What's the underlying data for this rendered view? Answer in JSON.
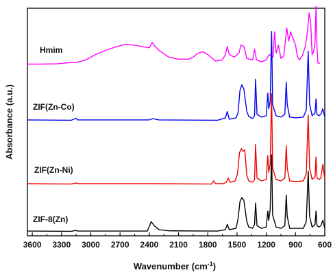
{
  "chart_data": {
    "type": "line",
    "title": "",
    "xlabel": "Wavenumber (cm",
    "xlabel_sup": "-1",
    "xlabel_close": ")",
    "ylabel": "Absorbance (a.u.)",
    "xlim": [
      3650,
      600
    ],
    "x_reversed": true,
    "x_ticks": [
      3600,
      3300,
      3000,
      2700,
      2400,
      2100,
      1800,
      1500,
      1200,
      900,
      600
    ],
    "y_ticks_shown": false,
    "grid": false,
    "legend": "inline labels left of each trace",
    "series": [
      {
        "name": "Hmim",
        "color": "#ff00ff",
        "points": [
          [
            3650,
            0.18
          ],
          [
            3500,
            0.18
          ],
          [
            3350,
            0.2
          ],
          [
            3200,
            0.3
          ],
          [
            3150,
            0.3
          ],
          [
            3050,
            0.5
          ],
          [
            2950,
            0.9
          ],
          [
            2850,
            1.2
          ],
          [
            2750,
            1.45
          ],
          [
            2650,
            1.65
          ],
          [
            2550,
            1.6
          ],
          [
            2450,
            1.45
          ],
          [
            2400,
            1.4
          ],
          [
            2370,
            1.8
          ],
          [
            2340,
            1.5
          ],
          [
            2300,
            1.2
          ],
          [
            2200,
            0.7
          ],
          [
            2100,
            0.55
          ],
          [
            2000,
            0.55
          ],
          [
            1950,
            0.7
          ],
          [
            1900,
            1.0
          ],
          [
            1850,
            1.1
          ],
          [
            1800,
            0.9
          ],
          [
            1720,
            0.4
          ],
          [
            1650,
            0.5
          ],
          [
            1620,
            0.9
          ],
          [
            1600,
            1.5
          ],
          [
            1580,
            0.9
          ],
          [
            1530,
            0.7
          ],
          [
            1480,
            1.0
          ],
          [
            1460,
            1.6
          ],
          [
            1430,
            1.5
          ],
          [
            1400,
            0.6
          ],
          [
            1340,
            0.5
          ],
          [
            1320,
            1.3
          ],
          [
            1300,
            0.5
          ],
          [
            1250,
            0.35
          ],
          [
            1200,
            0.5
          ],
          [
            1170,
            0.9
          ],
          [
            1150,
            0.8
          ],
          [
            1130,
            0.7
          ],
          [
            1115,
            2.6
          ],
          [
            1100,
            1.0
          ],
          [
            1075,
            1.6
          ],
          [
            1050,
            0.6
          ],
          [
            1020,
            0.8
          ],
          [
            1000,
            2.2
          ],
          [
            990,
            2.9
          ],
          [
            970,
            1.9
          ],
          [
            950,
            2.6
          ],
          [
            930,
            2.2
          ],
          [
            900,
            1.6
          ],
          [
            880,
            0.7
          ],
          [
            860,
            0.5
          ],
          [
            830,
            0.8
          ],
          [
            800,
            1.5
          ],
          [
            780,
            2.5
          ],
          [
            760,
            4.0
          ],
          [
            745,
            3.3
          ],
          [
            730,
            0.9
          ],
          [
            715,
            1.1
          ],
          [
            700,
            1.8
          ],
          [
            690,
            4.5
          ],
          [
            680,
            1.5
          ],
          [
            670,
            0.25
          ],
          [
            650,
            0.25
          ]
        ]
      },
      {
        "name": "ZIF(Zn-Co)",
        "color": "#0000ee",
        "points": [
          [
            3650,
            0.1
          ],
          [
            3200,
            0.08
          ],
          [
            3150,
            0.22
          ],
          [
            3135,
            0.1
          ],
          [
            2400,
            0.1
          ],
          [
            2360,
            0.2
          ],
          [
            2340,
            0.15
          ],
          [
            2300,
            0.1
          ],
          [
            1700,
            0.08
          ],
          [
            1620,
            0.25
          ],
          [
            1600,
            0.7
          ],
          [
            1580,
            0.15
          ],
          [
            1510,
            0.25
          ],
          [
            1490,
            0.6
          ],
          [
            1470,
            2.2
          ],
          [
            1450,
            2.6
          ],
          [
            1430,
            2.3
          ],
          [
            1400,
            0.7
          ],
          [
            1380,
            0.35
          ],
          [
            1340,
            0.2
          ],
          [
            1320,
            0.4
          ],
          [
            1310,
            3.0
          ],
          [
            1295,
            0.5
          ],
          [
            1250,
            0.3
          ],
          [
            1200,
            0.4
          ],
          [
            1185,
            2.0
          ],
          [
            1175,
            0.9
          ],
          [
            1160,
            1.4
          ],
          [
            1145,
            6.4
          ],
          [
            1135,
            1.2
          ],
          [
            1100,
            0.4
          ],
          [
            1050,
            0.3
          ],
          [
            1010,
            0.5
          ],
          [
            995,
            2.8
          ],
          [
            985,
            1.2
          ],
          [
            960,
            0.3
          ],
          [
            900,
            0.25
          ],
          [
            820,
            0.3
          ],
          [
            790,
            0.8
          ],
          [
            770,
            5.0
          ],
          [
            755,
            1.2
          ],
          [
            730,
            0.4
          ],
          [
            700,
            0.6
          ],
          [
            690,
            1.6
          ],
          [
            680,
            0.5
          ],
          [
            660,
            0.4
          ],
          [
            640,
            0.5
          ],
          [
            620,
            0.9
          ],
          [
            600,
            0.3
          ]
        ]
      },
      {
        "name": "ZIF(Zn-Ni)",
        "color": "#ee0000",
        "points": [
          [
            3650,
            0.1
          ],
          [
            3200,
            0.08
          ],
          [
            3150,
            0.15
          ],
          [
            3135,
            0.1
          ],
          [
            2400,
            0.1
          ],
          [
            1760,
            0.08
          ],
          [
            1740,
            0.3
          ],
          [
            1720,
            0.1
          ],
          [
            1640,
            0.1
          ],
          [
            1610,
            0.2
          ],
          [
            1590,
            0.5
          ],
          [
            1570,
            0.2
          ],
          [
            1520,
            0.3
          ],
          [
            1495,
            0.8
          ],
          [
            1475,
            2.3
          ],
          [
            1455,
            2.6
          ],
          [
            1440,
            2.4
          ],
          [
            1420,
            2.5
          ],
          [
            1400,
            0.7
          ],
          [
            1380,
            0.3
          ],
          [
            1340,
            0.2
          ],
          [
            1320,
            0.4
          ],
          [
            1310,
            2.9
          ],
          [
            1295,
            0.5
          ],
          [
            1250,
            0.3
          ],
          [
            1200,
            0.4
          ],
          [
            1185,
            2.1
          ],
          [
            1175,
            0.9
          ],
          [
            1160,
            1.5
          ],
          [
            1145,
            6.5
          ],
          [
            1135,
            1.2
          ],
          [
            1100,
            0.4
          ],
          [
            1050,
            0.3
          ],
          [
            1010,
            0.5
          ],
          [
            995,
            2.8
          ],
          [
            985,
            1.2
          ],
          [
            960,
            0.3
          ],
          [
            900,
            0.25
          ],
          [
            820,
            0.3
          ],
          [
            790,
            0.8
          ],
          [
            770,
            5.0
          ],
          [
            755,
            1.2
          ],
          [
            730,
            0.4
          ],
          [
            700,
            0.6
          ],
          [
            690,
            2.0
          ],
          [
            680,
            0.5
          ],
          [
            660,
            0.4
          ],
          [
            640,
            0.5
          ],
          [
            620,
            1.5
          ],
          [
            600,
            0.4
          ]
        ]
      },
      {
        "name": "ZIF-8(Zn)",
        "color": "#000000",
        "points": [
          [
            3650,
            0.1
          ],
          [
            3200,
            0.08
          ],
          [
            3150,
            0.15
          ],
          [
            3135,
            0.1
          ],
          [
            2420,
            0.1
          ],
          [
            2380,
            0.8
          ],
          [
            2350,
            0.5
          ],
          [
            2300,
            0.2
          ],
          [
            2200,
            0.12
          ],
          [
            1700,
            0.1
          ],
          [
            1620,
            0.2
          ],
          [
            1600,
            0.6
          ],
          [
            1580,
            0.2
          ],
          [
            1510,
            0.3
          ],
          [
            1490,
            1.0
          ],
          [
            1470,
            2.3
          ],
          [
            1450,
            2.6
          ],
          [
            1430,
            2.4
          ],
          [
            1400,
            0.8
          ],
          [
            1380,
            0.4
          ],
          [
            1340,
            0.3
          ],
          [
            1320,
            0.6
          ],
          [
            1310,
            2.2
          ],
          [
            1295,
            0.5
          ],
          [
            1250,
            0.3
          ],
          [
            1200,
            0.4
          ],
          [
            1185,
            1.6
          ],
          [
            1175,
            0.9
          ],
          [
            1160,
            1.7
          ],
          [
            1145,
            5.8
          ],
          [
            1135,
            1.3
          ],
          [
            1100,
            0.4
          ],
          [
            1050,
            0.3
          ],
          [
            1010,
            0.5
          ],
          [
            995,
            2.8
          ],
          [
            985,
            1.2
          ],
          [
            960,
            0.3
          ],
          [
            900,
            0.3
          ],
          [
            820,
            0.3
          ],
          [
            790,
            0.8
          ],
          [
            770,
            4.6
          ],
          [
            755,
            1.2
          ],
          [
            730,
            0.4
          ],
          [
            700,
            0.6
          ],
          [
            690,
            1.6
          ],
          [
            680,
            0.5
          ],
          [
            660,
            0.4
          ],
          [
            640,
            0.5
          ],
          [
            620,
            0.9
          ],
          [
            600,
            0.3
          ]
        ]
      }
    ]
  }
}
